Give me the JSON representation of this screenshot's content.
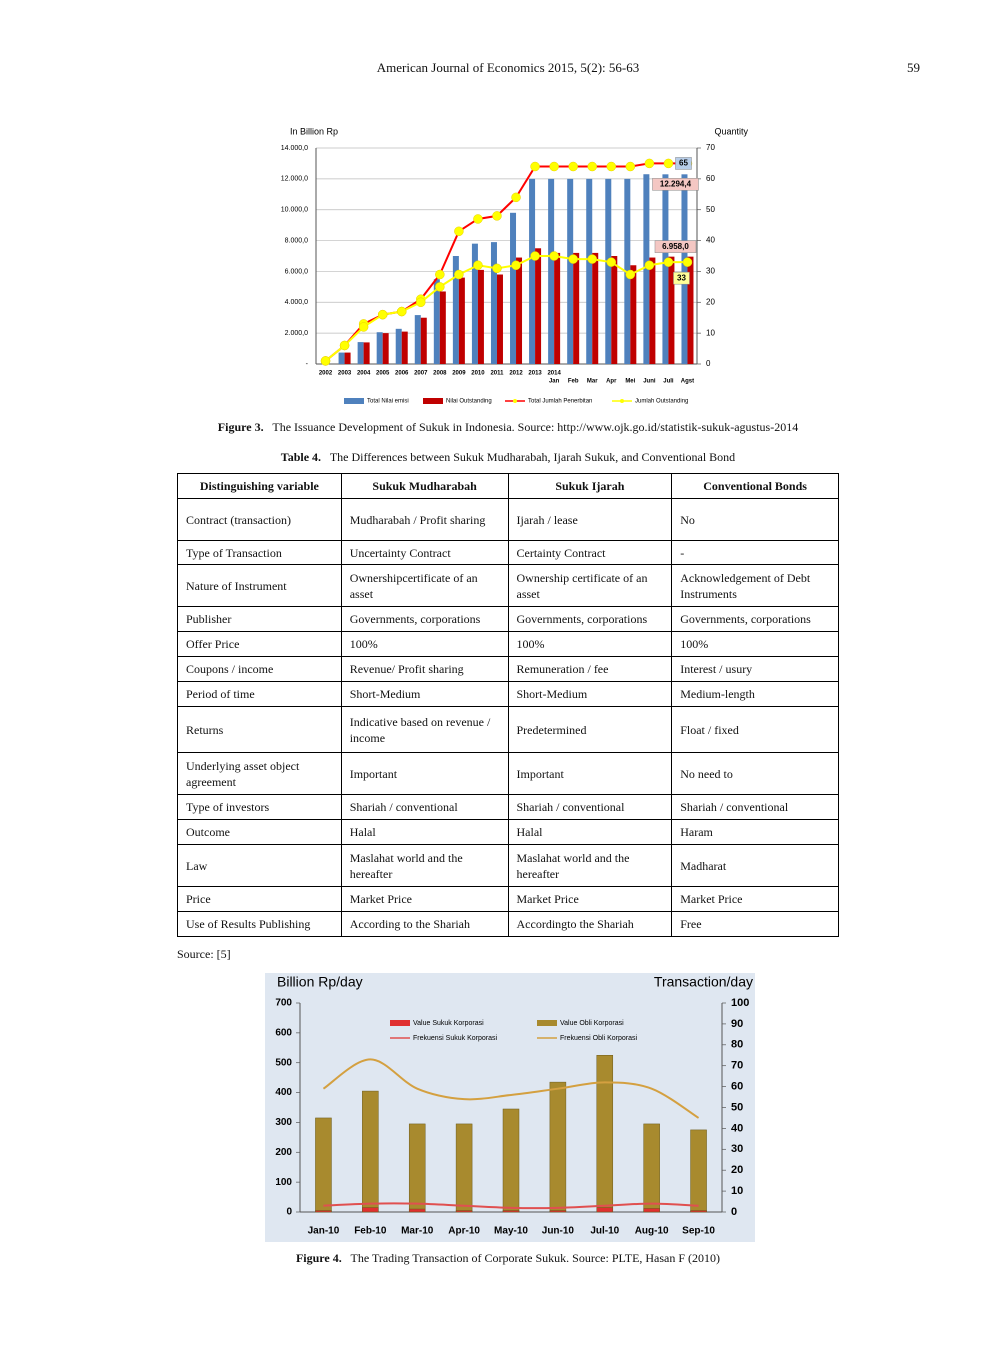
{
  "header": {
    "journal": "American Journal of Economics 2015, 5(2): 56-63",
    "page": "59"
  },
  "chart_data": [
    {
      "type": "bar",
      "ylabel": "In Billion Rp",
      "y2label": "Quantity",
      "categories": [
        "2002",
        "2003",
        "2004",
        "2005",
        "2006",
        "2007",
        "2008",
        "2009",
        "2010",
        "2011",
        "2012",
        "2013",
        "Jan",
        "Feb",
        "Mar",
        "Apr",
        "Mei",
        "Juni",
        "Juli",
        "Agst"
      ],
      "year_label": "2014",
      "ylim": [
        0,
        14000
      ],
      "yticks": [
        {
          "value": 0,
          "label": "-"
        },
        {
          "value": 2000,
          "label": "2.000,0"
        },
        {
          "value": 4000,
          "label": "4.000,0"
        },
        {
          "value": 6000,
          "label": "6.000,0"
        },
        {
          "value": 8000,
          "label": "8.000,0"
        },
        {
          "value": 10000,
          "label": "10.000,0"
        },
        {
          "value": 12000,
          "label": "12.000,0"
        },
        {
          "value": 14000,
          "label": "14.000,0"
        }
      ],
      "y2lim": [
        0,
        70
      ],
      "y2ticks": [
        0,
        10,
        20,
        30,
        40,
        50,
        60,
        70
      ],
      "grid": true,
      "bar_mode": "group",
      "smooth": false,
      "legend": "bottom",
      "series": [
        {
          "name": "Total Nilai emisi",
          "color": "#4f81bd",
          "values": [
            0,
            740,
            1420,
            2060,
            2280,
            3170,
            5500,
            7000,
            7800,
            7900,
            9800,
            12000,
            12000,
            12000,
            12000,
            12000,
            12000,
            12300,
            12294.4,
            12294.4
          ],
          "value_labels": [
            null,
            null,
            null,
            null,
            null,
            null,
            null,
            null,
            null,
            null,
            null,
            null,
            null,
            null,
            null,
            null,
            null,
            null,
            null,
            "12.294,4"
          ]
        },
        {
          "name": "Nilai Outstanding",
          "color": "#c00000",
          "values": [
            0,
            740,
            1400,
            2000,
            2100,
            3000,
            4700,
            5600,
            6100,
            5800,
            6900,
            7500,
            7200,
            7200,
            7200,
            7000,
            6400,
            6900,
            6958,
            6958
          ],
          "value_labels": [
            null,
            null,
            null,
            null,
            null,
            null,
            null,
            null,
            null,
            null,
            null,
            null,
            null,
            null,
            null,
            null,
            null,
            null,
            null,
            "6.958,0"
          ]
        },
        {
          "name": "Total Jumlah Penerbitan",
          "color": "#ff0000",
          "type": "line",
          "axis": "y2",
          "values": [
            1,
            6,
            13,
            16,
            17,
            21,
            29,
            43,
            47,
            48,
            54,
            64,
            64,
            64,
            64,
            64,
            64,
            65,
            65,
            65
          ],
          "value_labels": [
            null,
            null,
            null,
            null,
            null,
            null,
            null,
            null,
            null,
            null,
            null,
            null,
            null,
            null,
            null,
            null,
            null,
            null,
            null,
            "65"
          ]
        },
        {
          "name": "Jumlah Outstanding",
          "color": "#ffff00",
          "type": "line",
          "axis": "y2",
          "values": [
            1,
            6,
            12,
            16,
            17,
            20,
            25,
            29,
            32,
            31,
            32,
            35,
            35,
            34,
            34,
            33,
            29,
            32,
            33,
            33
          ],
          "value_labels": [
            null,
            null,
            null,
            null,
            null,
            null,
            null,
            null,
            null,
            null,
            null,
            null,
            null,
            null,
            null,
            null,
            null,
            null,
            null,
            "33"
          ]
        }
      ]
    },
    {
      "type": "bar",
      "ylabel": "Billion Rp/day",
      "y2label": "Transaction/day",
      "categories": [
        "Jan-10",
        "Feb-10",
        "Mar-10",
        "Apr-10",
        "May-10",
        "Jun-10",
        "Jul-10",
        "Aug-10",
        "Sep-10"
      ],
      "ylim": [
        0,
        700
      ],
      "yticks": [
        0,
        100,
        200,
        300,
        400,
        500,
        600,
        700
      ],
      "y2lim": [
        0,
        100
      ],
      "y2ticks": [
        0,
        10,
        20,
        30,
        40,
        50,
        60,
        70,
        80,
        90,
        100
      ],
      "grid": false,
      "bar_mode": "overlap",
      "smooth": true,
      "legend": "top",
      "series": [
        {
          "name": "Value Sukuk Korporasi",
          "color": "#e03030",
          "values": [
            5,
            15,
            10,
            5,
            5,
            5,
            15,
            12,
            5
          ]
        },
        {
          "name": "Value Obli Korporasi",
          "color": "#a88a2e",
          "values": [
            315,
            405,
            295,
            295,
            345,
            435,
            525,
            295,
            275
          ]
        },
        {
          "name": "Frekuensi Sukuk Korporasi",
          "color": "#e05050",
          "type": "line",
          "axis": "y2",
          "values": [
            3,
            4,
            4,
            3,
            2,
            2,
            3,
            4,
            3
          ]
        },
        {
          "name": "Frekuensi Obli Korporasi",
          "color": "#d4a040",
          "type": "line",
          "axis": "y2",
          "values": [
            59,
            73,
            59,
            54,
            56,
            59,
            62,
            59,
            45
          ]
        }
      ]
    }
  ],
  "figure3_caption": {
    "label": "Figure 3.",
    "text": "The Issuance Development of Sukuk in Indonesia. Source: http://www.ojk.go.id/statistik-sukuk-agustus-2014"
  },
  "table_caption": {
    "label": "Table 4.",
    "text": "The Differences between Sukuk Mudharabah, Ijarah Sukuk, and Conventional Bond"
  },
  "table": {
    "header": [
      "Distinguishing variable",
      "Sukuk Mudharabah",
      "Sukuk Ijarah",
      "Conventional Bonds"
    ],
    "rows": [
      [
        "Contract (transaction)",
        "Mudharabah / Profit sharing",
        "Ijarah / lease",
        "No"
      ],
      [
        "Type of Transaction",
        "Uncertainty Contract",
        "Certainty Contract",
        "-"
      ],
      [
        "Nature of Instrument",
        "Ownershipcertificate of an asset",
        "Ownership certificate of an asset",
        "Acknowledgement of Debt Instruments"
      ],
      [
        "Publisher",
        "Governments, corporations",
        "Governments, corporations",
        "Governments, corporations"
      ],
      [
        "Offer Price",
        "100%",
        "100%",
        "100%"
      ],
      [
        "Coupons / income",
        "Revenue/ Profit sharing",
        "Remuneration / fee",
        "Interest / usury"
      ],
      [
        "Period of time",
        "Short-Medium",
        "Short-Medium",
        "Medium-length"
      ],
      [
        "Returns",
        "Indicative based on revenue / income",
        "Predetermined",
        "Float / fixed"
      ],
      [
        "Underlying asset object agreement",
        "Important",
        "Important",
        "No need to"
      ],
      [
        "Type of investors",
        "Shariah / conventional",
        "Shariah / conventional",
        "Shariah / conventional"
      ],
      [
        "Outcome",
        "Halal",
        "Halal",
        "Haram"
      ],
      [
        "Law",
        "Maslahat world and the hereafter",
        "Maslahat world and the hereafter",
        "Madharat"
      ],
      [
        "Price",
        "Market Price",
        "Market Price",
        "Market Price"
      ],
      [
        "Use of Results Publishing",
        "According to the Shariah",
        "Accordingto the Shariah",
        "Free"
      ]
    ]
  },
  "table_source": "Source: [5]",
  "figure4_caption": {
    "label": "Figure 4.",
    "text": "The Trading Transaction of Corporate Sukuk. Source: PLTE, Hasan F (2010)"
  }
}
